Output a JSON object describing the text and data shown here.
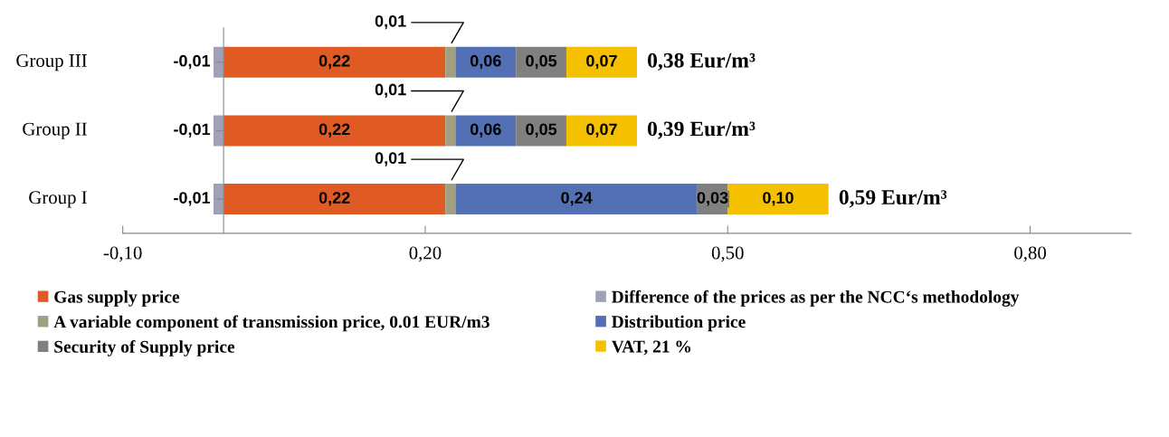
{
  "chart_data": {
    "type": "bar",
    "orientation": "horizontal",
    "stacked": true,
    "categories": [
      "Group III",
      "Group II",
      "Group I"
    ],
    "series": [
      {
        "name": "Gas supply price",
        "color": "#e05a24",
        "values": [
          0.22,
          0.22,
          0.22
        ],
        "value_labels": [
          "0,22",
          "0,22",
          "0,22"
        ]
      },
      {
        "name": "Difference of the prices as per the NCC‘s methodology",
        "color": "#a0a0b8",
        "values": [
          -0.01,
          -0.01,
          -0.01
        ],
        "value_labels": [
          "-0,01",
          "-0,01",
          "-0,01"
        ]
      },
      {
        "name": "A variable component of transmission price, 0.01 EUR/m3",
        "color": "#a0a080",
        "values": [
          0.01,
          0.01,
          0.01
        ],
        "value_labels": [
          "0,01",
          "0,01",
          "0,01"
        ]
      },
      {
        "name": "Distribution price",
        "color": "#5470b4",
        "values": [
          0.06,
          0.06,
          0.24
        ],
        "value_labels": [
          "0,06",
          "0,06",
          "0,24"
        ]
      },
      {
        "name": "Security of Supply price",
        "color": "#808080",
        "values": [
          0.05,
          0.05,
          0.03
        ],
        "value_labels": [
          "0,05",
          "0,05",
          "0,03"
        ]
      },
      {
        "name": "VAT, 21 %",
        "color": "#f5c000",
        "values": [
          0.07,
          0.07,
          0.1
        ],
        "value_labels": [
          "0,07",
          "0,07",
          "0,10"
        ]
      }
    ],
    "totals": [
      "0,38 Eur/m³",
      "0,39 Eur/m³",
      "0,59 Eur/m³"
    ],
    "xlim": [
      -0.1,
      0.9
    ],
    "xticks": [
      {
        "value": -0.1,
        "label": "-0,10"
      },
      {
        "value": 0.2,
        "label": "0,20"
      },
      {
        "value": 0.5,
        "label": "0,50"
      },
      {
        "value": 0.8,
        "label": "0,80"
      }
    ],
    "grid": false,
    "legend": "bottom"
  }
}
